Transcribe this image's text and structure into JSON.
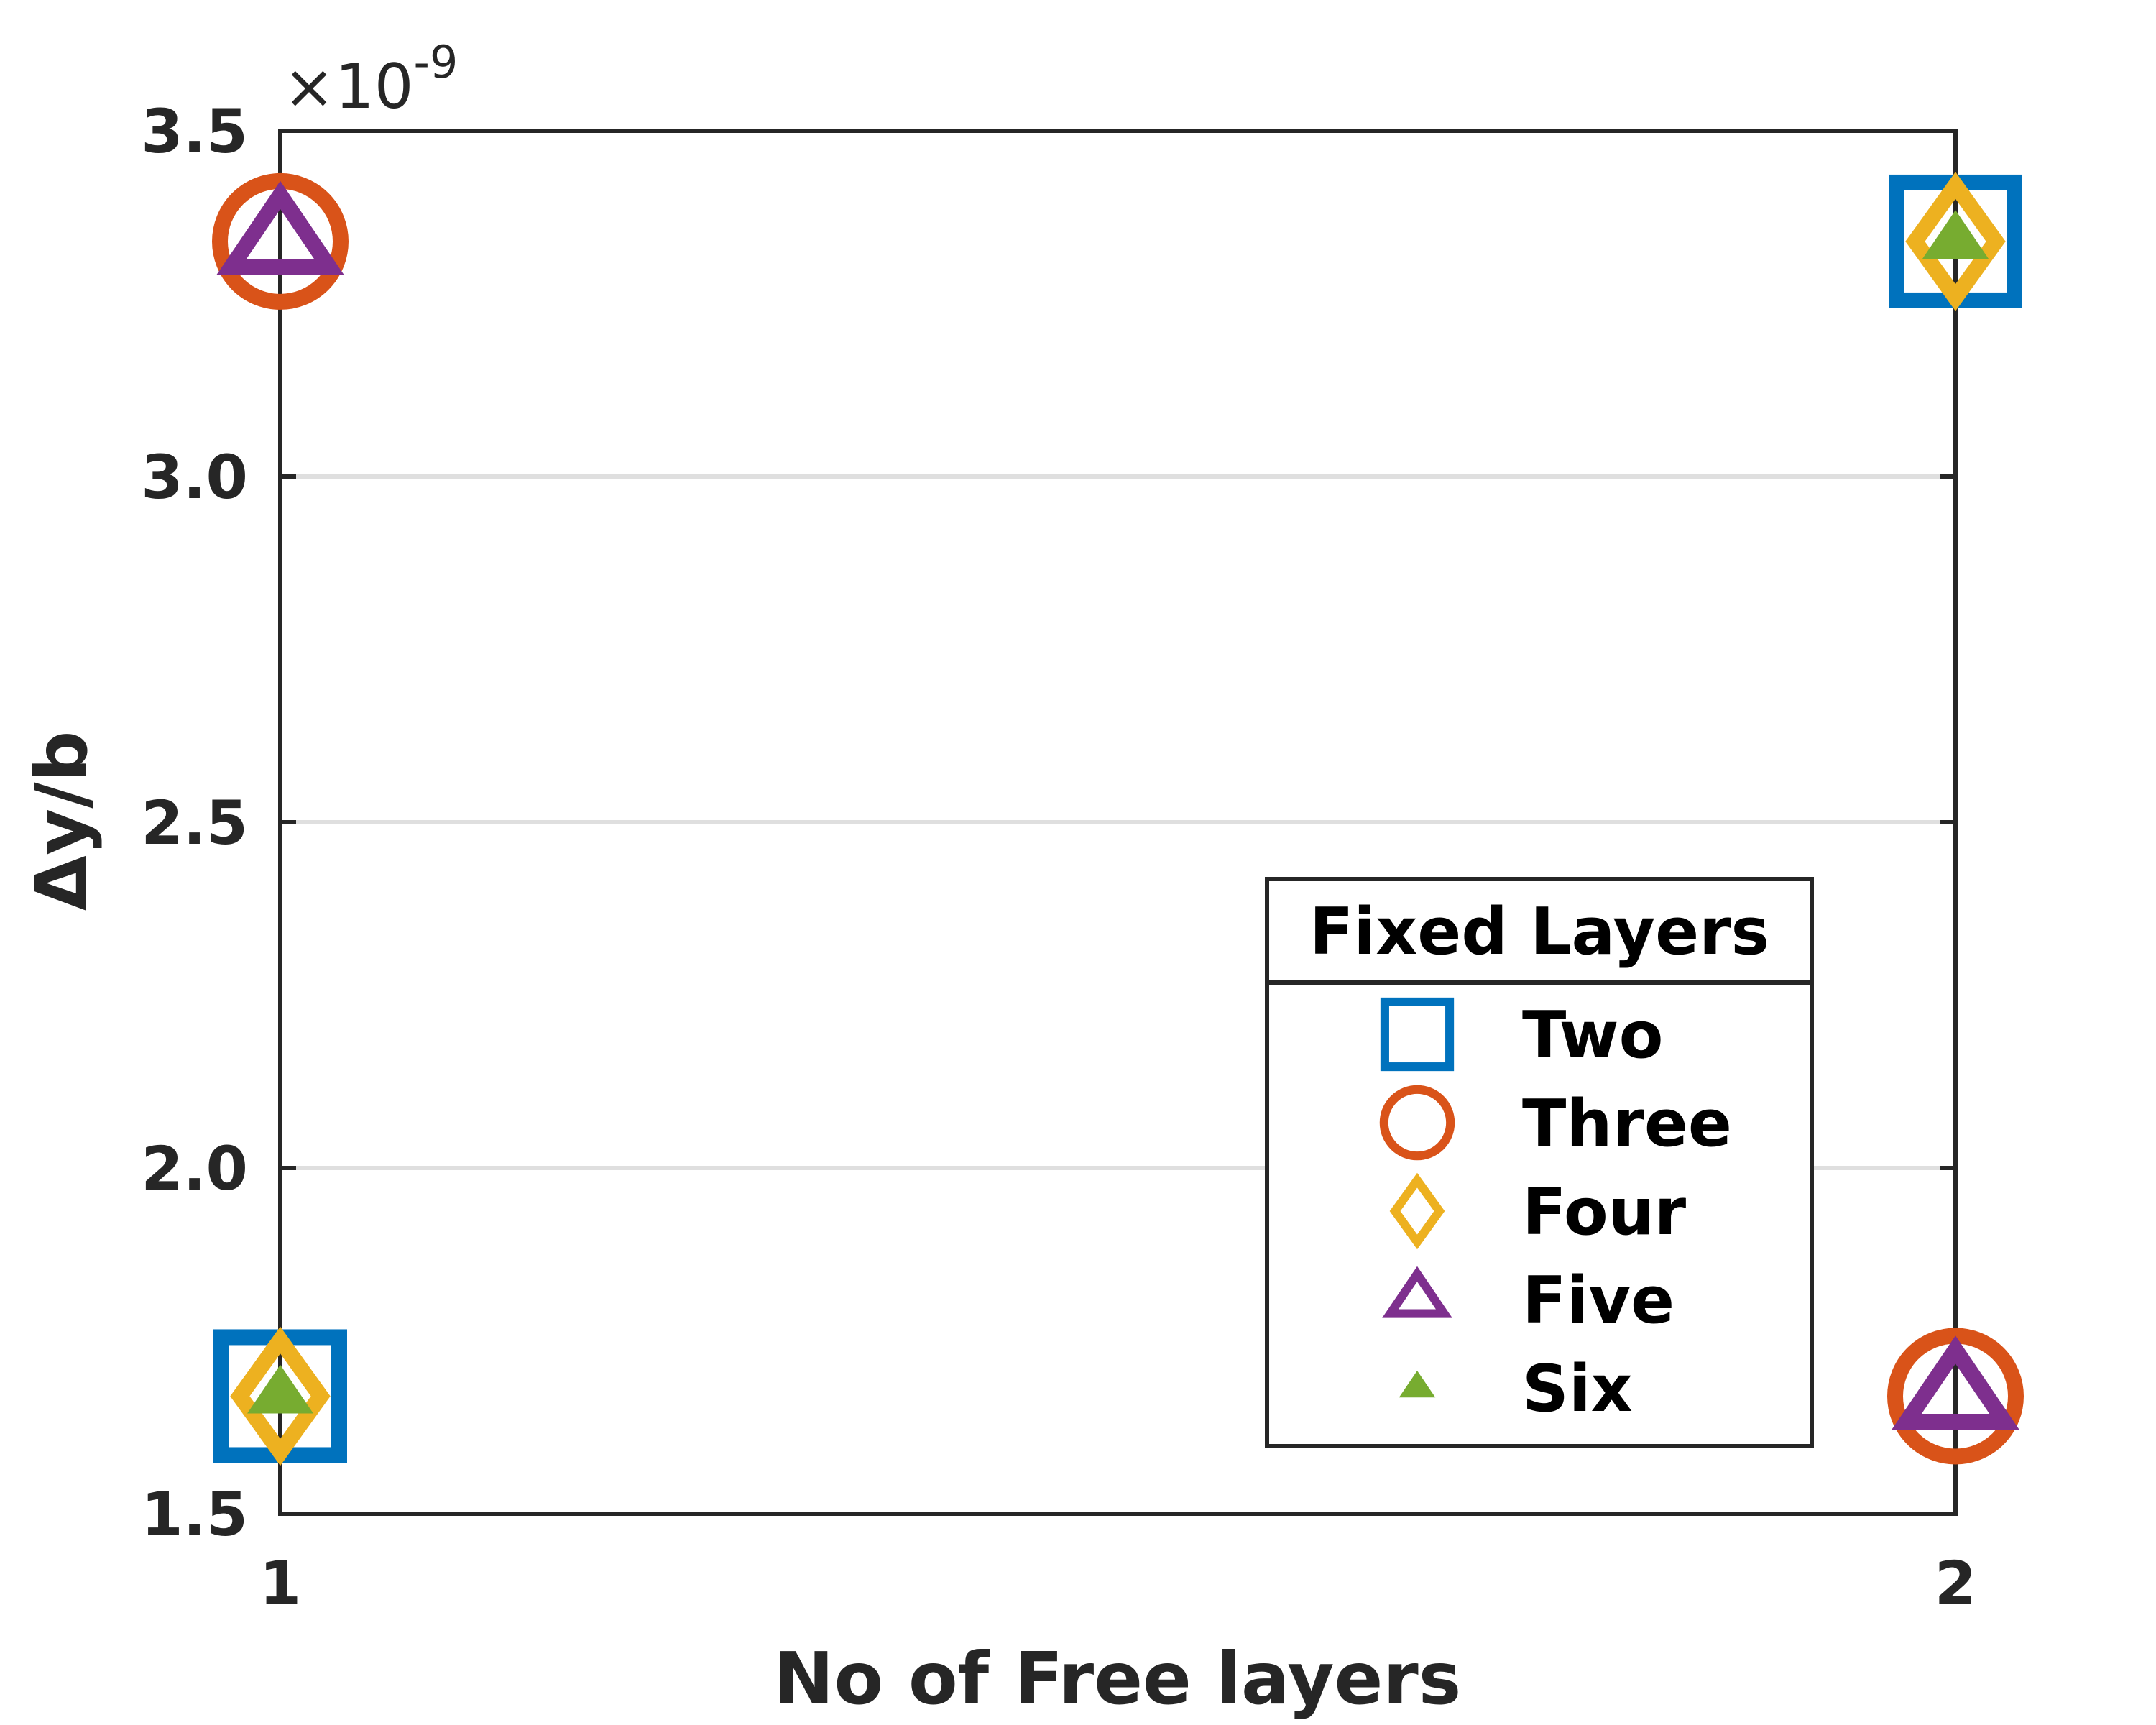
{
  "chart_data": {
    "type": "scatter",
    "xlabel": "No of Free layers",
    "ylabel": "Δy/b",
    "y_multiplier": {
      "base": "×10",
      "exponent": "-9"
    },
    "x": [
      1,
      2
    ],
    "xlim": [
      1,
      2
    ],
    "xticks": [
      1,
      2
    ],
    "ylim": [
      1.5,
      3.5
    ],
    "yticks": [
      1.5,
      {
        "value": 2,
        "label": "2.0"
      },
      2.5,
      {
        "value": 3,
        "label": "3.0"
      },
      3.5
    ],
    "grid": "y",
    "legend_title": "Fixed Layers",
    "legend_position": "southeast",
    "series": [
      {
        "name": "Two",
        "color": "#0072BD",
        "marker": "square",
        "values": [
          1.67,
          3.34
        ]
      },
      {
        "name": "Three",
        "color": "#D95319",
        "marker": "circle",
        "values": [
          3.34,
          1.67
        ]
      },
      {
        "name": "Four",
        "color": "#EDB120",
        "marker": "diamond",
        "values": [
          1.67,
          3.34
        ]
      },
      {
        "name": "Five",
        "color": "#7E2F8E",
        "marker": "triangle",
        "values": [
          3.34,
          1.67
        ]
      },
      {
        "name": "Six",
        "color": "#77AC30",
        "marker": "triangle-filled",
        "values": [
          1.67,
          3.34
        ]
      }
    ]
  }
}
